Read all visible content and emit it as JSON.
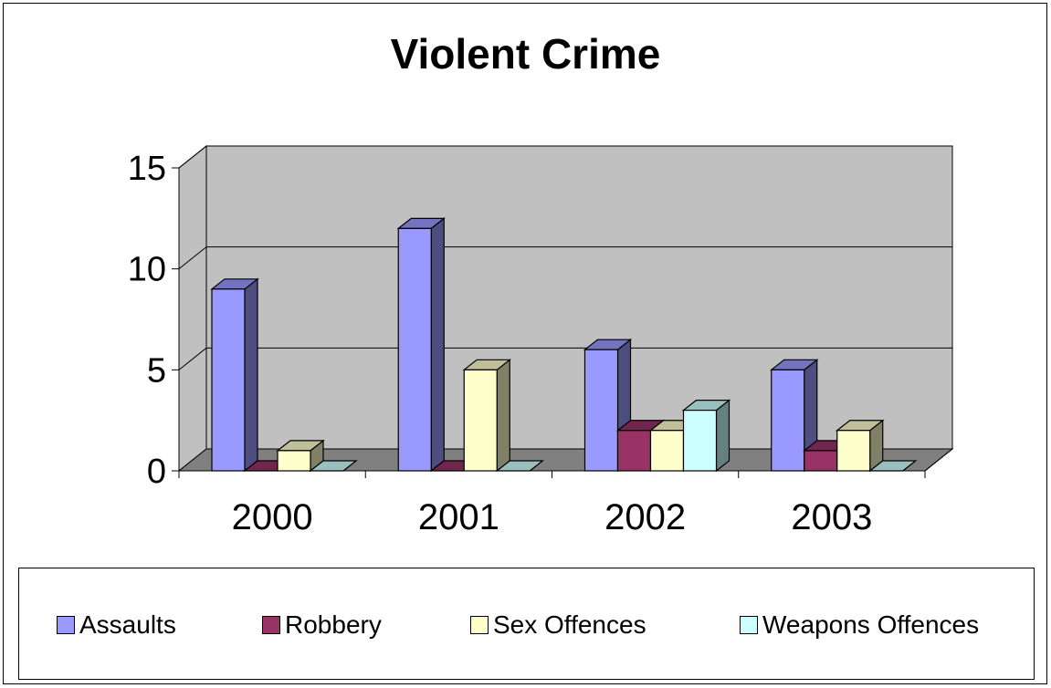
{
  "chart_data": {
    "type": "bar",
    "title": "Violent Crime",
    "categories": [
      "2000",
      "2001",
      "2002",
      "2003"
    ],
    "series": [
      {
        "name": "Assaults",
        "values": [
          9,
          12,
          6,
          5
        ],
        "color": "#9999FF"
      },
      {
        "name": "Robbery",
        "values": [
          0,
          0,
          2,
          1
        ],
        "color": "#993366"
      },
      {
        "name": "Sex Offences",
        "values": [
          1,
          5,
          2,
          2
        ],
        "color": "#FFFFCC"
      },
      {
        "name": "Weapons Offences",
        "values": [
          0,
          0,
          3,
          0
        ],
        "color": "#CCFFFF"
      }
    ],
    "ylim": [
      0,
      15
    ],
    "yticks": [
      0,
      5,
      10,
      15
    ],
    "grid": true,
    "legend_position": "bottom",
    "plot_wall_color": "#C0C0C0",
    "plot_floor_color": "#808080"
  }
}
